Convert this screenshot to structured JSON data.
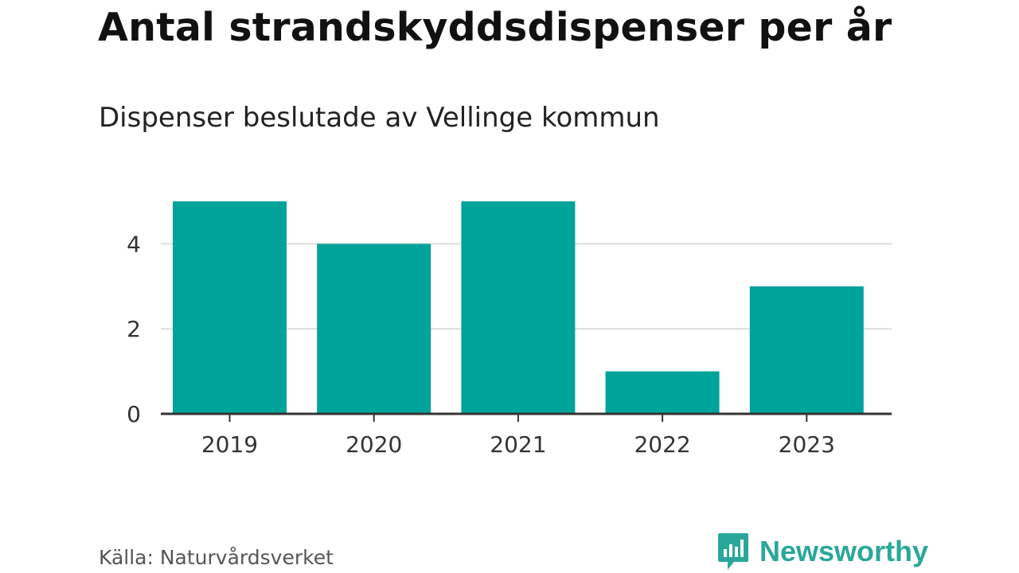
{
  "header": {
    "title": "Antal strandskyddsdispenser per år",
    "subtitle": "Dispenser beslutade av Vellinge kommun"
  },
  "footer": {
    "source": "Källa: Naturvårdsverket",
    "brand": "Newsworthy",
    "brand_color": "#2aa79b"
  },
  "colors": {
    "bar": "#00a39a",
    "grid": "#dddddd",
    "axis": "#333333"
  },
  "chart_data": {
    "type": "bar",
    "categories": [
      "2019",
      "2020",
      "2021",
      "2022",
      "2023"
    ],
    "values": [
      5,
      4,
      5,
      1,
      3
    ],
    "y_ticks": [
      0,
      2,
      4
    ],
    "ylim": [
      0,
      5
    ],
    "xlabel": "",
    "ylabel": "",
    "grid": true,
    "legend": "none"
  }
}
